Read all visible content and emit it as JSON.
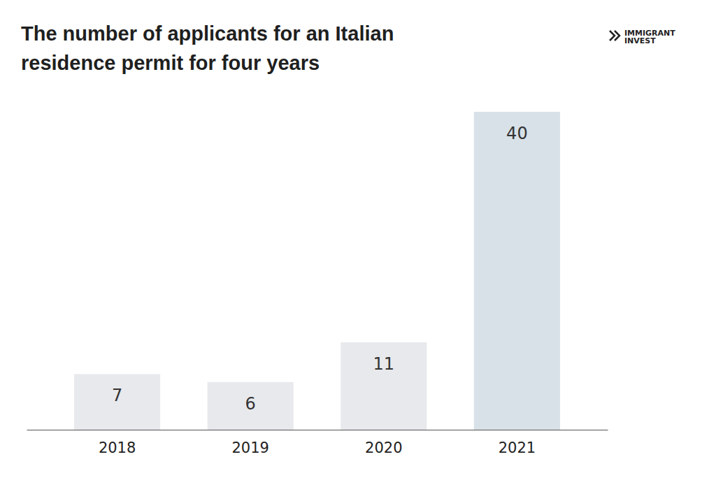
{
  "chart_data": {
    "type": "bar",
    "title": "The number of applicants for an Italian residence permit for four years",
    "annotations": [
      "IMMIGRANT",
      "INVEST"
    ],
    "categories": [
      "2018",
      "2019",
      "2020",
      "2021"
    ],
    "values": [
      7,
      6,
      11,
      40
    ],
    "colors": [
      "#e8e9ec",
      "#e8e9ec",
      "#e8e9ec",
      "#d7e1e7"
    ],
    "ylim": [
      0,
      40
    ],
    "data_labels": true,
    "tick_labels": "x",
    "grid": false
  }
}
